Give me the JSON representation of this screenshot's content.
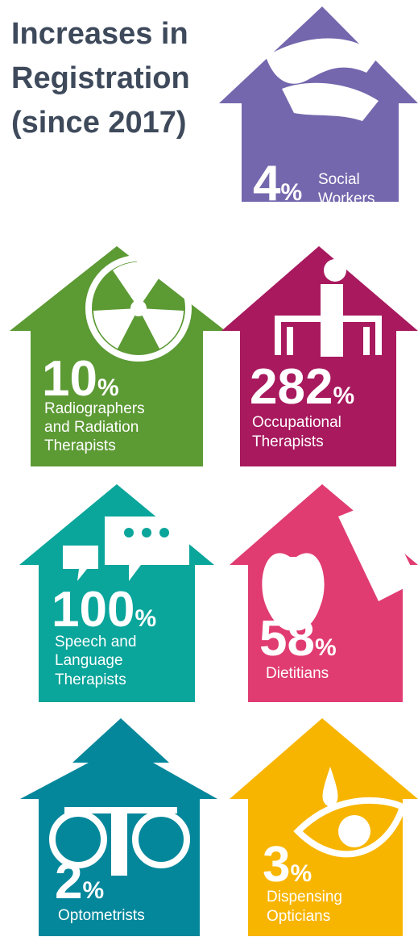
{
  "header": {
    "title": [
      "Increases in",
      "Registration",
      "(since 2017)"
    ]
  },
  "items": [
    {
      "value": "4",
      "unit": "%",
      "label": [
        "Social",
        "Workers"
      ],
      "color": "#7467ad"
    },
    {
      "value": "10",
      "unit": "%",
      "label": [
        "Radiographers",
        "and Radiation",
        "Therapists"
      ],
      "color": "#5c9a34"
    },
    {
      "value": "282",
      "unit": "%",
      "label": [
        "Occupational",
        "Therapists"
      ],
      "color": "#a8195e"
    },
    {
      "value": "100",
      "unit": "%",
      "label": [
        "Speech and",
        "Language",
        "Therapists"
      ],
      "color": "#0aa59b"
    },
    {
      "value": "58",
      "unit": "%",
      "label": [
        "Dietitians"
      ],
      "color": "#e03c71"
    },
    {
      "value": "2",
      "unit": "%",
      "label": [
        "Optometrists"
      ],
      "color": "#04879b"
    },
    {
      "value": "3",
      "unit": "%",
      "label": [
        "Dispensing",
        "Opticians"
      ],
      "color": "#f8b500"
    }
  ]
}
